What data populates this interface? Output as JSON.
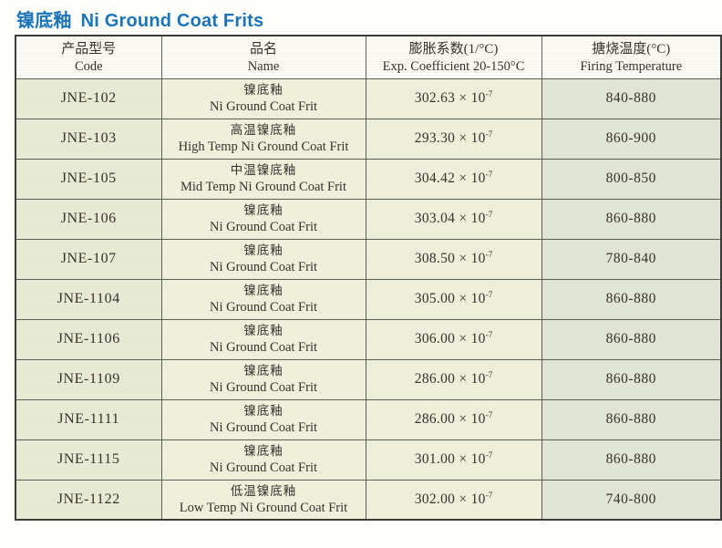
{
  "page": {
    "title_zh": "镍底釉",
    "title_en": "Ni Ground Coat Frits"
  },
  "colors": {
    "title_blue": "#1b74b8",
    "header_bg": "#fbfaf4",
    "code_col_bg": "#e9ebd4",
    "name_col_bg": "#f0f1dc",
    "coeff_col_bg": "#eef0da",
    "temp_col_bg": "#e2e6d4",
    "grid_line": "#5c6057"
  },
  "table": {
    "headers": {
      "code": {
        "zh": "产品型号",
        "en": "Code"
      },
      "name": {
        "zh": "品名",
        "en": "Name"
      },
      "coeff": {
        "zh": "膨胀系数(1/°C)",
        "en": "Exp. Coefficient 20-150°C"
      },
      "temp": {
        "zh": "搪烧温度(°C)",
        "en": "Firing Temperature"
      }
    },
    "rows": [
      {
        "code": "JNE-102",
        "name_zh": "镍底釉",
        "name_en": "Ni Ground Coat Frit",
        "coeff_base": "302.63 × 10",
        "coeff_exp": "-7",
        "firing_temp": "840-880"
      },
      {
        "code": "JNE-103",
        "name_zh": "高温镍底釉",
        "name_en": "High Temp Ni Ground Coat Frit",
        "coeff_base": "293.30 × 10",
        "coeff_exp": "-7",
        "firing_temp": "860-900"
      },
      {
        "code": "JNE-105",
        "name_zh": "中温镍底釉",
        "name_en": "Mid Temp Ni Ground Coat Frit",
        "coeff_base": "304.42 × 10",
        "coeff_exp": "-7",
        "firing_temp": "800-850"
      },
      {
        "code": "JNE-106",
        "name_zh": "镍底釉",
        "name_en": "Ni Ground Coat Frit",
        "coeff_base": "303.04 × 10",
        "coeff_exp": "-7",
        "firing_temp": "860-880"
      },
      {
        "code": "JNE-107",
        "name_zh": "镍底釉",
        "name_en": "Ni Ground Coat Frit",
        "coeff_base": "308.50 × 10",
        "coeff_exp": "-7",
        "firing_temp": "780-840"
      },
      {
        "code": "JNE-1104",
        "name_zh": "镍底釉",
        "name_en": "Ni Ground Coat Frit",
        "coeff_base": "305.00 × 10",
        "coeff_exp": "-7",
        "firing_temp": "860-880"
      },
      {
        "code": "JNE-1106",
        "name_zh": "镍底釉",
        "name_en": "Ni Ground Coat Frit",
        "coeff_base": "306.00 × 10",
        "coeff_exp": "-7",
        "firing_temp": "860-880"
      },
      {
        "code": "JNE-1109",
        "name_zh": "镍底釉",
        "name_en": "Ni Ground Coat Frit",
        "coeff_base": "286.00 × 10",
        "coeff_exp": "-7",
        "firing_temp": "860-880"
      },
      {
        "code": "JNE-1111",
        "name_zh": "镍底釉",
        "name_en": "Ni Ground Coat Frit",
        "coeff_base": "286.00 × 10",
        "coeff_exp": "-7",
        "firing_temp": "860-880"
      },
      {
        "code": "JNE-1115",
        "name_zh": "镍底釉",
        "name_en": "Ni Ground Coat Frit",
        "coeff_base": "301.00 × 10",
        "coeff_exp": "-7",
        "firing_temp": "860-880"
      },
      {
        "code": "JNE-1122",
        "name_zh": "低温镍底釉",
        "name_en": "Low Temp Ni Ground Coat Frit",
        "coeff_base": "302.00 × 10",
        "coeff_exp": "-7",
        "firing_temp": "740-800"
      }
    ]
  }
}
